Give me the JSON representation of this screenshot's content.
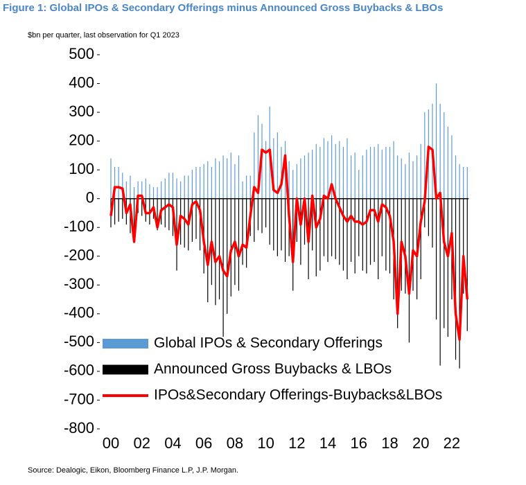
{
  "chart_data": {
    "type": "combo",
    "title": "Figure 1: Global IPOs & Secondary Offerings minus Announced Gross Buybacks & LBOs",
    "subtitle": "$bn per quarter, last observation for Q1 2023",
    "source": "Source: Dealogic, Eikon, Bloomberg Finance L.P, J.P. Morgan.",
    "categories": [
      "00",
      null,
      null,
      null,
      null,
      null,
      null,
      null,
      "02",
      null,
      null,
      null,
      null,
      null,
      null,
      null,
      "04",
      null,
      null,
      null,
      null,
      null,
      null,
      null,
      "06",
      null,
      null,
      null,
      null,
      null,
      null,
      null,
      "08",
      null,
      null,
      null,
      null,
      null,
      null,
      null,
      "10",
      null,
      null,
      null,
      null,
      null,
      null,
      null,
      "12",
      null,
      null,
      null,
      null,
      null,
      null,
      null,
      "14",
      null,
      null,
      null,
      null,
      null,
      null,
      null,
      "16",
      null,
      null,
      null,
      null,
      null,
      null,
      null,
      "18",
      null,
      null,
      null,
      null,
      null,
      null,
      null,
      "20",
      null,
      null,
      null,
      null,
      null,
      null,
      null,
      "22",
      null,
      null,
      null,
      null
    ],
    "ylim": [
      -800,
      500
    ],
    "yticks": [
      -800,
      -700,
      -600,
      -500,
      -400,
      -300,
      -200,
      -100,
      0,
      100,
      200,
      300,
      400,
      500
    ],
    "series": [
      {
        "name": "Global IPOs & Secondary Offerings",
        "type": "bar",
        "color": "#5b9bd5",
        "values": [
          140,
          110,
          110,
          90,
          60,
          80,
          40,
          60,
          60,
          70,
          50,
          40,
          40,
          60,
          70,
          90,
          90,
          70,
          60,
          80,
          80,
          100,
          110,
          110,
          120,
          130,
          110,
          140,
          130,
          150,
          140,
          160,
          120,
          150,
          60,
          80,
          80,
          230,
          290,
          260,
          200,
          320,
          210,
          230,
          180,
          200,
          130,
          100,
          120,
          140,
          150,
          160,
          170,
          190,
          180,
          210,
          200,
          220,
          190,
          200,
          180,
          210,
          150,
          160,
          100,
          150,
          170,
          180,
          180,
          190,
          170,
          180,
          180,
          200,
          150,
          140,
          120,
          160,
          130,
          150,
          190,
          300,
          310,
          330,
          400,
          330,
          300,
          250,
          220,
          150,
          120,
          110,
          110
        ]
      },
      {
        "name": "Announced Gross Buybacks & LBOs",
        "type": "bar",
        "color": "#000000",
        "values": [
          -100,
          -90,
          -80,
          -70,
          -90,
          -120,
          -150,
          -50,
          -60,
          -80,
          -90,
          -70,
          -110,
          -90,
          -100,
          -110,
          -130,
          -250,
          -160,
          -170,
          -180,
          -150,
          -140,
          -180,
          -260,
          -360,
          -300,
          -370,
          -350,
          -480,
          -400,
          -340,
          -300,
          -320,
          -230,
          -240,
          -130,
          -150,
          -110,
          -120,
          -100,
          -160,
          -180,
          -200,
          -180,
          -220,
          -200,
          -320,
          -150,
          -230,
          -160,
          -280,
          -180,
          -270,
          -250,
          -200,
          -220,
          -200,
          -210,
          -230,
          -250,
          -280,
          -220,
          -260,
          -200,
          -250,
          -260,
          -230,
          -220,
          -280,
          -200,
          -250,
          -260,
          -350,
          -450,
          -320,
          -330,
          -500,
          -320,
          -350,
          -280,
          -100,
          -130,
          -170,
          -420,
          -580,
          -450,
          -480,
          -350,
          -560,
          -590,
          -330,
          -460
        ]
      },
      {
        "name": "IPOs&Secondary Offerings-Buybacks&LBOs",
        "type": "line",
        "color": "#ff0000",
        "values": [
          -60,
          40,
          40,
          35,
          -50,
          -20,
          -150,
          10,
          10,
          -50,
          -50,
          -30,
          -100,
          -40,
          -30,
          -20,
          -30,
          -160,
          -60,
          -70,
          -90,
          -20,
          -10,
          -40,
          -150,
          -230,
          -150,
          -220,
          -200,
          -250,
          -270,
          -180,
          -150,
          -200,
          -160,
          -170,
          -60,
          40,
          20,
          170,
          160,
          170,
          30,
          20,
          50,
          150,
          -60,
          -220,
          0,
          -90,
          0,
          -150,
          10,
          -100,
          -70,
          10,
          0,
          50,
          0,
          -30,
          -60,
          -80,
          -60,
          -80,
          -80,
          -90,
          -80,
          -40,
          -40,
          -80,
          -20,
          -30,
          -60,
          -150,
          -400,
          -150,
          -200,
          -330,
          -180,
          -200,
          -80,
          -10,
          180,
          170,
          0,
          20,
          -150,
          -200,
          -120,
          -400,
          -490,
          -200,
          -350
        ]
      }
    ]
  }
}
